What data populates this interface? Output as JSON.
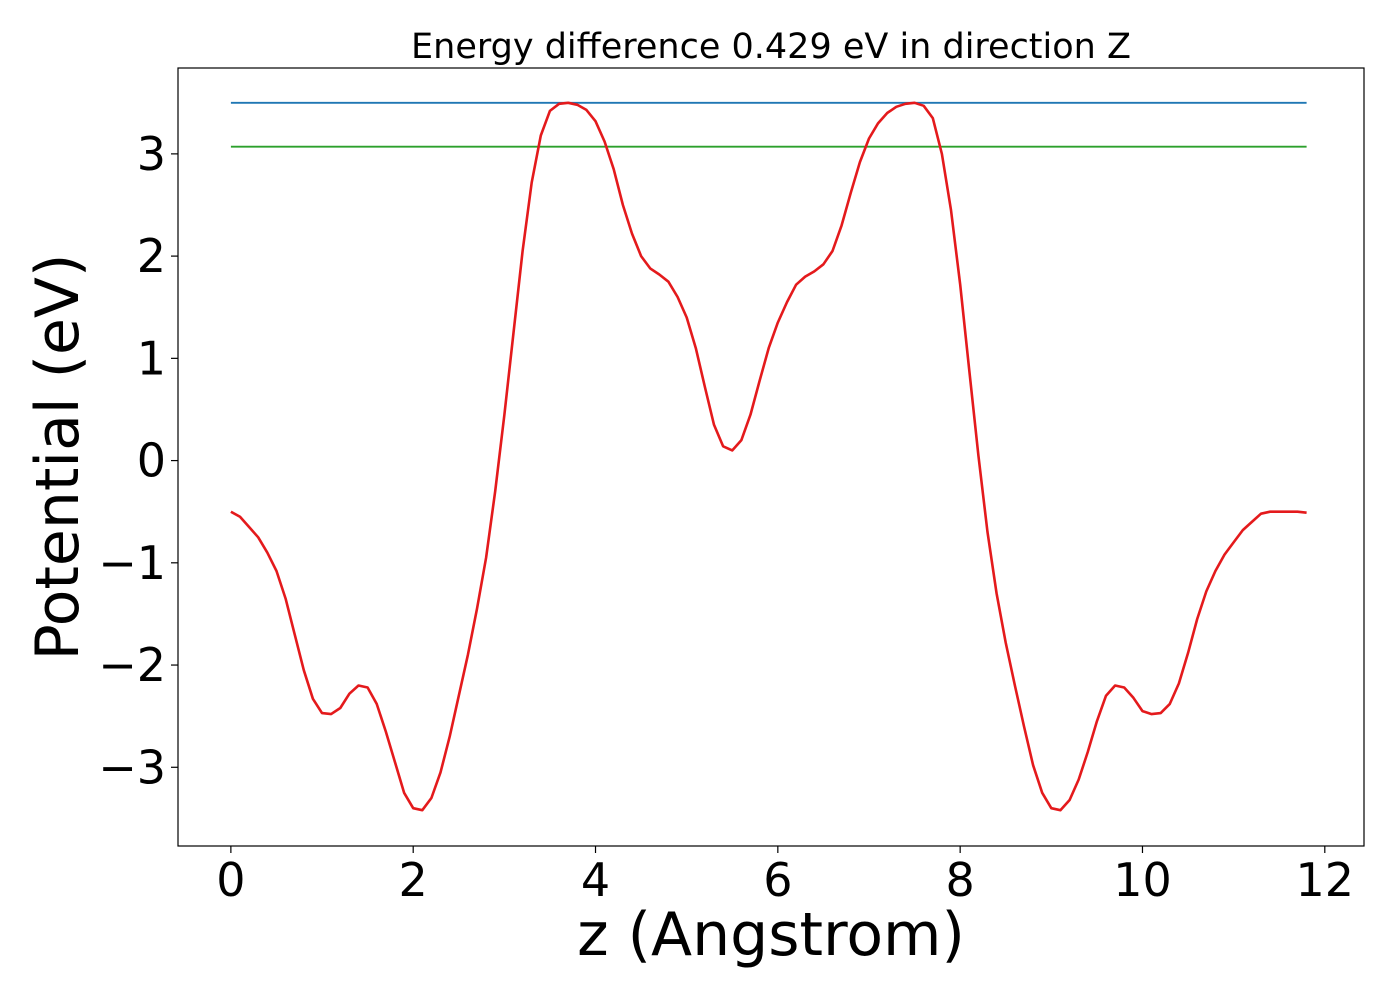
{
  "chart_data": {
    "type": "line",
    "title": "Energy difference 0.429 eV in direction Z",
    "xlabel": "z (Angstrom)",
    "ylabel": "Potential (eV)",
    "xlim": [
      -0.58,
      12.43
    ],
    "ylim": [
      -3.77,
      3.84
    ],
    "x_ticks": [
      0,
      2,
      4,
      6,
      8,
      10,
      12
    ],
    "x_tick_labels": [
      "0",
      "2",
      "4",
      "6",
      "8",
      "10",
      "12"
    ],
    "y_ticks": [
      -3,
      -2,
      -1,
      0,
      1,
      2,
      3
    ],
    "y_tick_labels": [
      "−3",
      "−2",
      "−1",
      "0",
      "1",
      "2",
      "3"
    ],
    "grid": false,
    "series": [
      {
        "color": "#1f77b4",
        "x": [
          0,
          11.8
        ],
        "y": [
          3.5,
          3.5
        ]
      },
      {
        "color": "#2ca02c",
        "x": [
          0,
          11.8
        ],
        "y": [
          3.07,
          3.07
        ]
      },
      {
        "color": "#e41a1c",
        "x": [
          0,
          0.1,
          0.2,
          0.3,
          0.4,
          0.5,
          0.6,
          0.7,
          0.8,
          0.9,
          1.0,
          1.1,
          1.2,
          1.3,
          1.4,
          1.5,
          1.6,
          1.7,
          1.8,
          1.9,
          2.0,
          2.1,
          2.2,
          2.3,
          2.4,
          2.5,
          2.6,
          2.7,
          2.8,
          2.9,
          3.0,
          3.1,
          3.2,
          3.3,
          3.4,
          3.5,
          3.6,
          3.7,
          3.8,
          3.9,
          4.0,
          4.1,
          4.2,
          4.3,
          4.4,
          4.5,
          4.6,
          4.7,
          4.8,
          4.9,
          5.0,
          5.1,
          5.2,
          5.3,
          5.4,
          5.5,
          5.6,
          5.7,
          5.8,
          5.9,
          6.0,
          6.1,
          6.2,
          6.3,
          6.4,
          6.5,
          6.6,
          6.7,
          6.8,
          6.9,
          7.0,
          7.1,
          7.2,
          7.3,
          7.4,
          7.5,
          7.6,
          7.7,
          7.8,
          7.9,
          8.0,
          8.1,
          8.2,
          8.3,
          8.4,
          8.5,
          8.6,
          8.7,
          8.8,
          8.9,
          9.0,
          9.1,
          9.2,
          9.3,
          9.4,
          9.5,
          9.6,
          9.7,
          9.8,
          9.9,
          10.0,
          10.1,
          10.2,
          10.3,
          10.4,
          10.5,
          10.6,
          10.7,
          10.8,
          10.9,
          11.0,
          11.1,
          11.2,
          11.3,
          11.4,
          11.5,
          11.6,
          11.7,
          11.8
        ],
        "y": [
          -0.5,
          -0.55,
          -0.65,
          -0.75,
          -0.9,
          -1.08,
          -1.35,
          -1.7,
          -2.05,
          -2.33,
          -2.47,
          -2.48,
          -2.42,
          -2.28,
          -2.2,
          -2.22,
          -2.38,
          -2.65,
          -2.95,
          -3.25,
          -3.4,
          -3.42,
          -3.3,
          -3.05,
          -2.7,
          -2.3,
          -1.9,
          -1.45,
          -0.95,
          -0.3,
          0.45,
          1.25,
          2.05,
          2.72,
          3.18,
          3.42,
          3.49,
          3.5,
          3.48,
          3.43,
          3.32,
          3.12,
          2.85,
          2.5,
          2.22,
          2.0,
          1.88,
          1.82,
          1.75,
          1.6,
          1.4,
          1.1,
          0.72,
          0.35,
          0.14,
          0.1,
          0.2,
          0.45,
          0.78,
          1.1,
          1.35,
          1.55,
          1.72,
          1.8,
          1.85,
          1.92,
          2.05,
          2.3,
          2.62,
          2.92,
          3.15,
          3.3,
          3.4,
          3.46,
          3.49,
          3.5,
          3.47,
          3.35,
          3.0,
          2.45,
          1.72,
          0.88,
          0.05,
          -0.7,
          -1.3,
          -1.78,
          -2.2,
          -2.6,
          -2.98,
          -3.25,
          -3.4,
          -3.42,
          -3.32,
          -3.12,
          -2.85,
          -2.55,
          -2.3,
          -2.2,
          -2.22,
          -2.32,
          -2.45,
          -2.48,
          -2.47,
          -2.38,
          -2.18,
          -1.88,
          -1.55,
          -1.28,
          -1.08,
          -0.92,
          -0.8,
          -0.68,
          -0.6,
          -0.52,
          -0.5,
          -0.5,
          -0.5,
          -0.5,
          -0.51
        ]
      }
    ]
  }
}
